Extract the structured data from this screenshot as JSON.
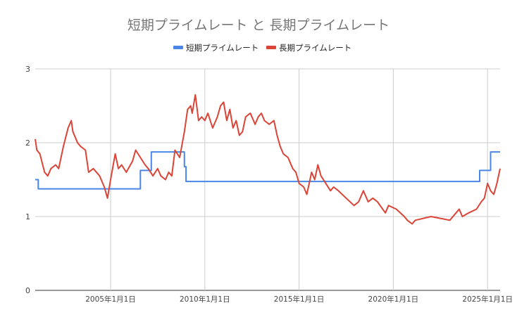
{
  "chart_data": {
    "type": "line",
    "title": "短期プライムレート と 長期プライムレート",
    "legend_position": "top",
    "grid": true,
    "x_range": [
      "2001-01-01",
      "2025-09-01"
    ],
    "ylim": [
      0,
      3
    ],
    "y_ticks": [
      "0",
      "1",
      "2",
      "3"
    ],
    "x_ticks": [
      {
        "label": "2005年1月1日",
        "date": "2005-01-01"
      },
      {
        "label": "2010年1月1日",
        "date": "2010-01-01"
      },
      {
        "label": "2015年1月1日",
        "date": "2015-01-01"
      },
      {
        "label": "2020年1月1日",
        "date": "2020-01-01"
      },
      {
        "label": "2025年1月1日",
        "date": "2025-01-01"
      }
    ],
    "series": [
      {
        "name": "短期プライムレート",
        "color": "#4a86e8",
        "step": true,
        "points": [
          [
            "2001-01-01",
            1.5
          ],
          [
            "2001-03-01",
            1.375
          ],
          [
            "2006-08-01",
            1.625
          ],
          [
            "2007-03-01",
            1.875
          ],
          [
            "2008-12-01",
            1.675
          ],
          [
            "2009-01-01",
            1.475
          ],
          [
            "2024-08-01",
            1.625
          ],
          [
            "2025-03-01",
            1.875
          ],
          [
            "2025-09-01",
            1.875
          ]
        ]
      },
      {
        "name": "長期プライムレート",
        "color": "#db4437",
        "step": false,
        "points": [
          [
            "2001-01-01",
            2.05
          ],
          [
            "2001-02-01",
            1.9
          ],
          [
            "2001-04-01",
            1.85
          ],
          [
            "2001-07-01",
            1.6
          ],
          [
            "2001-09-01",
            1.55
          ],
          [
            "2001-11-01",
            1.65
          ],
          [
            "2002-02-01",
            1.7
          ],
          [
            "2002-04-01",
            1.65
          ],
          [
            "2002-07-01",
            1.95
          ],
          [
            "2002-10-01",
            2.2
          ],
          [
            "2002-12-01",
            2.3
          ],
          [
            "2003-01-01",
            2.15
          ],
          [
            "2003-04-01",
            2.0
          ],
          [
            "2003-06-01",
            1.95
          ],
          [
            "2003-09-01",
            1.9
          ],
          [
            "2003-11-01",
            1.6
          ],
          [
            "2004-02-01",
            1.65
          ],
          [
            "2004-06-01",
            1.55
          ],
          [
            "2004-09-01",
            1.4
          ],
          [
            "2004-11-01",
            1.25
          ],
          [
            "2005-01-01",
            1.5
          ],
          [
            "2005-04-01",
            1.85
          ],
          [
            "2005-06-01",
            1.65
          ],
          [
            "2005-08-01",
            1.7
          ],
          [
            "2005-11-01",
            1.6
          ],
          [
            "2006-03-01",
            1.75
          ],
          [
            "2006-05-01",
            1.9
          ],
          [
            "2006-08-01",
            1.8
          ],
          [
            "2006-11-01",
            1.7
          ],
          [
            "2007-01-01",
            1.65
          ],
          [
            "2007-04-01",
            1.55
          ],
          [
            "2007-07-01",
            1.65
          ],
          [
            "2007-09-01",
            1.55
          ],
          [
            "2007-12-01",
            1.5
          ],
          [
            "2008-02-01",
            1.6
          ],
          [
            "2008-04-01",
            1.55
          ],
          [
            "2008-06-01",
            1.9
          ],
          [
            "2008-09-01",
            1.8
          ],
          [
            "2008-12-01",
            2.15
          ],
          [
            "2009-02-01",
            2.45
          ],
          [
            "2009-04-01",
            2.5
          ],
          [
            "2009-05-01",
            2.4
          ],
          [
            "2009-07-01",
            2.65
          ],
          [
            "2009-09-01",
            2.3
          ],
          [
            "2009-11-01",
            2.35
          ],
          [
            "2010-01-01",
            2.3
          ],
          [
            "2010-03-01",
            2.4
          ],
          [
            "2010-06-01",
            2.2
          ],
          [
            "2010-09-01",
            2.35
          ],
          [
            "2010-11-01",
            2.5
          ],
          [
            "2011-01-01",
            2.55
          ],
          [
            "2011-03-01",
            2.3
          ],
          [
            "2011-05-01",
            2.45
          ],
          [
            "2011-07-01",
            2.2
          ],
          [
            "2011-09-01",
            2.3
          ],
          [
            "2011-11-01",
            2.1
          ],
          [
            "2012-01-01",
            2.15
          ],
          [
            "2012-03-01",
            2.35
          ],
          [
            "2012-06-01",
            2.4
          ],
          [
            "2012-09-01",
            2.25
          ],
          [
            "2012-11-01",
            2.35
          ],
          [
            "2013-01-01",
            2.4
          ],
          [
            "2013-03-01",
            2.3
          ],
          [
            "2013-06-01",
            2.25
          ],
          [
            "2013-09-01",
            2.3
          ],
          [
            "2013-11-01",
            2.1
          ],
          [
            "2014-01-01",
            1.95
          ],
          [
            "2014-03-01",
            1.85
          ],
          [
            "2014-06-01",
            1.8
          ],
          [
            "2014-09-01",
            1.65
          ],
          [
            "2014-11-01",
            1.6
          ],
          [
            "2015-01-01",
            1.45
          ],
          [
            "2015-04-01",
            1.4
          ],
          [
            "2015-06-01",
            1.3
          ],
          [
            "2015-09-01",
            1.6
          ],
          [
            "2015-11-01",
            1.5
          ],
          [
            "2016-01-01",
            1.7
          ],
          [
            "2016-03-01",
            1.55
          ],
          [
            "2016-06-01",
            1.45
          ],
          [
            "2016-09-01",
            1.35
          ],
          [
            "2016-11-01",
            1.4
          ],
          [
            "2017-02-01",
            1.35
          ],
          [
            "2017-07-01",
            1.25
          ],
          [
            "2017-12-01",
            1.15
          ],
          [
            "2018-03-01",
            1.2
          ],
          [
            "2018-06-01",
            1.35
          ],
          [
            "2018-09-01",
            1.2
          ],
          [
            "2018-12-01",
            1.25
          ],
          [
            "2019-03-01",
            1.2
          ],
          [
            "2019-08-01",
            1.05
          ],
          [
            "2019-10-01",
            1.15
          ],
          [
            "2020-03-01",
            1.1
          ],
          [
            "2020-08-01",
            1.0
          ],
          [
            "2020-10-01",
            0.95
          ],
          [
            "2021-01-01",
            0.9
          ],
          [
            "2021-03-01",
            0.95
          ],
          [
            "2022-01-01",
            1.0
          ],
          [
            "2023-01-01",
            0.95
          ],
          [
            "2023-07-01",
            1.1
          ],
          [
            "2023-09-01",
            1.0
          ],
          [
            "2024-01-01",
            1.05
          ],
          [
            "2024-06-01",
            1.1
          ],
          [
            "2024-09-01",
            1.2
          ],
          [
            "2024-11-01",
            1.25
          ],
          [
            "2025-01-01",
            1.45
          ],
          [
            "2025-03-01",
            1.35
          ],
          [
            "2025-05-01",
            1.3
          ],
          [
            "2025-07-01",
            1.45
          ],
          [
            "2025-09-01",
            1.65
          ]
        ]
      }
    ]
  }
}
